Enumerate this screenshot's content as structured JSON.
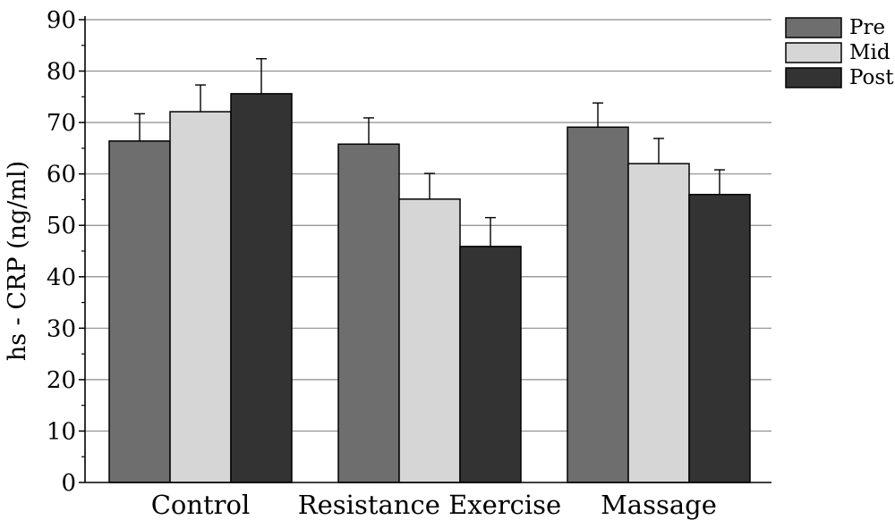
{
  "chart_data": {
    "type": "bar",
    "title": "",
    "xlabel": "",
    "ylabel": "hs - CRP (ng/ml)",
    "categories": [
      "Control",
      "Resistance Exercise",
      "Massage"
    ],
    "series": [
      {
        "name": "Pre",
        "color": "#6e6e6e",
        "values": [
          66.4,
          65.8,
          69.1
        ],
        "errors": [
          5.3,
          5.1,
          4.7
        ]
      },
      {
        "name": "Mid",
        "color": "#d6d6d6",
        "values": [
          72.1,
          55.1,
          62.0
        ],
        "errors": [
          5.2,
          5.0,
          4.9
        ]
      },
      {
        "name": "Post",
        "color": "#333333",
        "values": [
          75.6,
          45.9,
          56.0
        ],
        "errors": [
          6.8,
          5.6,
          4.8
        ]
      }
    ],
    "ylim": [
      0,
      90
    ],
    "yticks": [
      0,
      10,
      20,
      30,
      40,
      50,
      60,
      70,
      80,
      90
    ],
    "grid": true,
    "legend_position": "top-right"
  }
}
